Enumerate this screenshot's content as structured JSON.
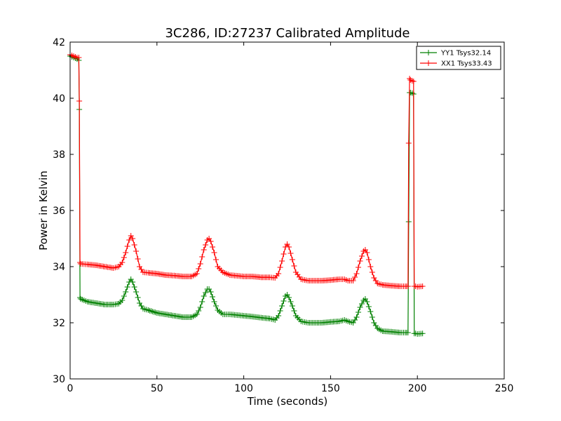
{
  "chart_data": {
    "type": "line",
    "title": "3C286, ID:27237 Calibrated Amplitude",
    "xlabel": "Time (seconds)",
    "ylabel": "Power in Kelvin",
    "xlim": [
      0,
      250
    ],
    "ylim": [
      30,
      42
    ],
    "xticks": [
      "0",
      "50",
      "100",
      "150",
      "200",
      "250"
    ],
    "yticks": [
      "30",
      "32",
      "34",
      "36",
      "38",
      "40",
      "42"
    ],
    "grid": false,
    "legend": "top-right",
    "marker": "+",
    "series": [
      {
        "name": "YY1 Tsys32.14",
        "color": "#008000",
        "x": [
          0,
          2,
          4,
          5,
          5.3,
          5.7,
          6,
          10,
          15,
          20,
          25,
          28,
          30,
          32,
          34,
          35,
          36,
          38,
          40,
          42,
          45,
          50,
          55,
          60,
          65,
          70,
          73,
          75,
          77,
          79,
          80,
          81,
          83,
          85,
          88,
          92,
          100,
          105,
          110,
          115,
          118,
          120,
          122,
          124,
          125,
          126,
          128,
          130,
          133,
          137,
          145,
          150,
          155,
          158,
          160,
          163,
          165,
          167,
          169,
          170,
          171,
          173,
          175,
          177,
          180,
          185,
          190,
          193,
          194.6,
          195,
          195.5,
          196,
          197,
          197.8,
          198.2,
          199,
          200,
          203
        ],
        "y": [
          41.5,
          41.45,
          41.4,
          41.35,
          39.6,
          32.9,
          32.85,
          32.75,
          32.7,
          32.65,
          32.65,
          32.68,
          32.8,
          33.1,
          33.45,
          33.55,
          33.45,
          33.1,
          32.7,
          32.5,
          32.45,
          32.35,
          32.3,
          32.25,
          32.2,
          32.2,
          32.3,
          32.55,
          32.95,
          33.2,
          33.2,
          33.1,
          32.75,
          32.45,
          32.3,
          32.3,
          32.25,
          32.22,
          32.18,
          32.15,
          32.1,
          32.25,
          32.6,
          32.95,
          33.0,
          32.9,
          32.6,
          32.25,
          32.05,
          32.0,
          32.0,
          32.03,
          32.05,
          32.1,
          32.05,
          32.0,
          32.2,
          32.55,
          32.8,
          32.85,
          32.75,
          32.4,
          32.0,
          31.8,
          31.7,
          31.68,
          31.65,
          31.65,
          31.65,
          35.6,
          40.2,
          40.2,
          40.18,
          40.15,
          31.62,
          31.62,
          31.6,
          31.62
        ]
      },
      {
        "name": "XX1 Tsys33.43",
        "color": "#ff0000",
        "x": [
          0,
          2,
          4,
          5,
          5.3,
          5.7,
          6,
          10,
          15,
          20,
          25,
          28,
          30,
          32,
          34,
          35,
          36,
          38,
          40,
          42,
          45,
          50,
          55,
          60,
          65,
          70,
          73,
          75,
          77,
          79,
          80,
          81,
          83,
          85,
          88,
          92,
          100,
          105,
          110,
          115,
          118,
          120,
          122,
          124,
          125,
          126,
          128,
          130,
          133,
          137,
          145,
          150,
          155,
          158,
          160,
          163,
          165,
          167,
          169,
          170,
          171,
          173,
          175,
          177,
          180,
          185,
          190,
          193,
          194.6,
          195,
          195.5,
          196,
          197,
          197.8,
          198.2,
          199,
          200,
          203
        ],
        "y": [
          41.55,
          41.5,
          41.45,
          41.45,
          39.9,
          34.15,
          34.1,
          34.08,
          34.05,
          34.0,
          33.95,
          34.0,
          34.15,
          34.5,
          34.95,
          35.1,
          35.0,
          34.55,
          34.0,
          33.8,
          33.78,
          33.75,
          33.7,
          33.68,
          33.65,
          33.65,
          33.75,
          34.1,
          34.6,
          34.95,
          35.0,
          34.9,
          34.5,
          34.0,
          33.8,
          33.7,
          33.65,
          33.65,
          33.62,
          33.62,
          33.6,
          33.75,
          34.2,
          34.7,
          34.8,
          34.7,
          34.25,
          33.8,
          33.55,
          33.5,
          33.5,
          33.52,
          33.55,
          33.55,
          33.5,
          33.5,
          33.75,
          34.2,
          34.55,
          34.6,
          34.5,
          34.0,
          33.6,
          33.4,
          33.35,
          33.32,
          33.3,
          33.3,
          33.3,
          38.4,
          40.7,
          40.65,
          40.62,
          40.6,
          33.3,
          33.3,
          33.28,
          33.3
        ]
      }
    ]
  }
}
